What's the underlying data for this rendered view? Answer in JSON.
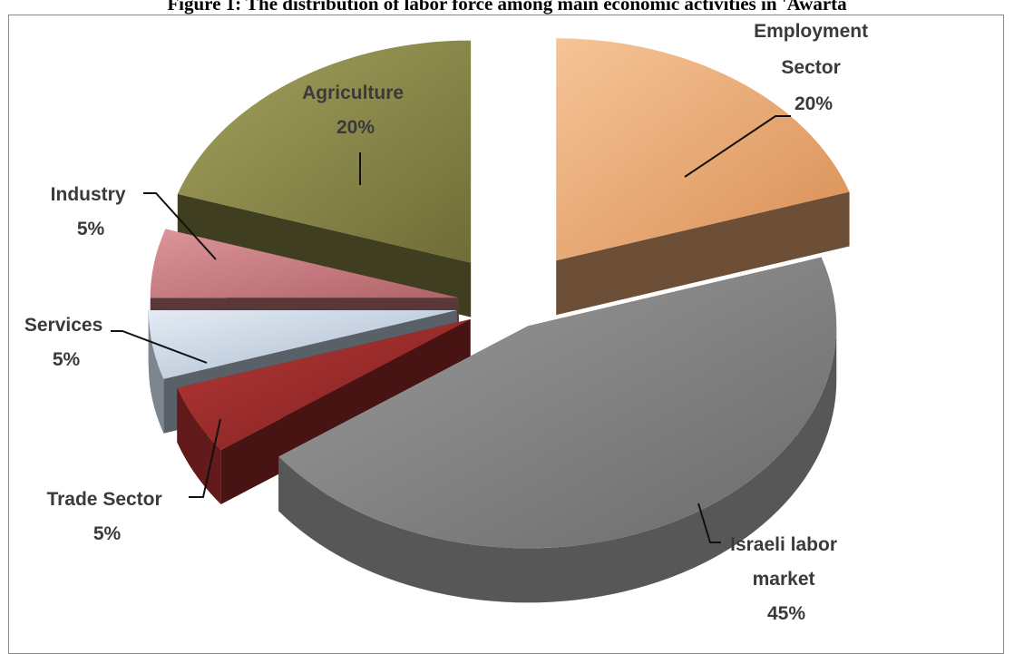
{
  "chart_data": {
    "type": "pie",
    "title": "Figure 1: The distribution of labor force among main economic activities in 'Awarta",
    "legend": "none",
    "slices": [
      {
        "label": "Employment Sector",
        "lines": [
          "Employment",
          "Sector"
        ],
        "value": 20,
        "pct": "20%",
        "color": "#f2b07a"
      },
      {
        "label": "Israeli labor market",
        "lines": [
          "Israeli labor",
          "market"
        ],
        "value": 45,
        "pct": "45%",
        "color": "#8c8c8c"
      },
      {
        "label": "Trade Sector",
        "lines": [
          "Trade Sector"
        ],
        "value": 5,
        "pct": "5%",
        "color": "#9e2a2a"
      },
      {
        "label": "Services",
        "lines": [
          "Services"
        ],
        "value": 5,
        "pct": "5%",
        "color": "#c9d6e6"
      },
      {
        "label": "Industry",
        "lines": [
          "Industry"
        ],
        "value": 5,
        "pct": "5%",
        "color": "#c97a7e"
      },
      {
        "label": "Agriculture",
        "lines": [
          "Agriculture"
        ],
        "value": 20,
        "pct": "20%",
        "color": "#8c8a4a"
      }
    ]
  }
}
